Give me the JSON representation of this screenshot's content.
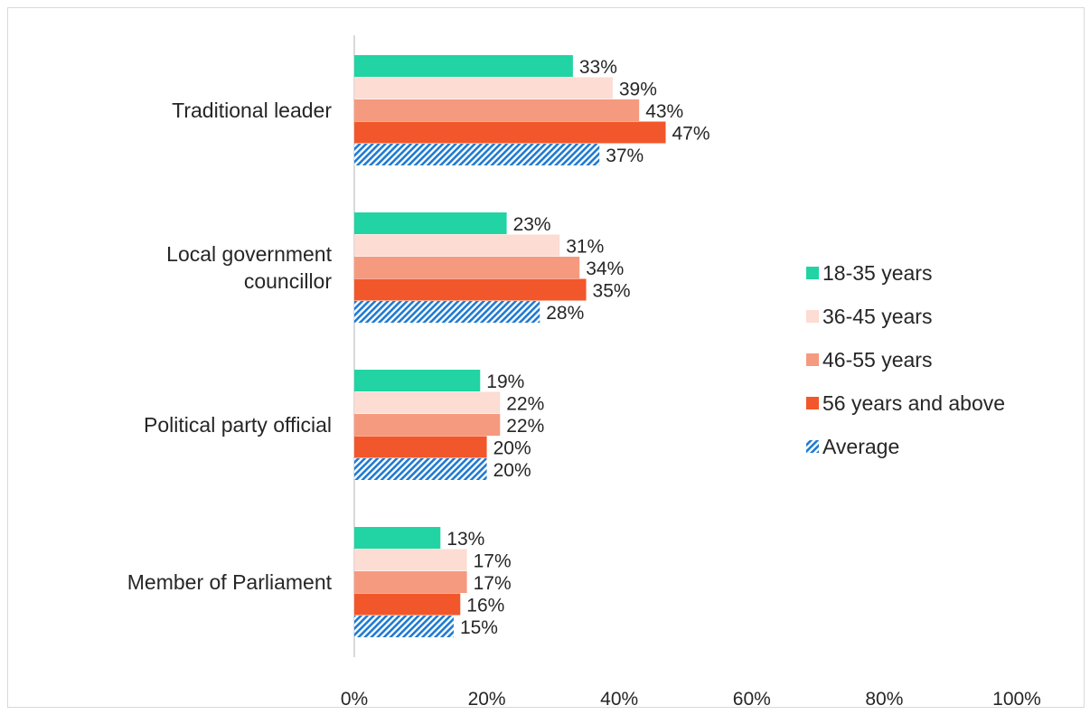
{
  "chart_data": {
    "type": "bar",
    "orientation": "horizontal",
    "categories": [
      "Traditional leader",
      "Local government councillor",
      "Political party official",
      "Member of Parliament"
    ],
    "category_lines": [
      [
        "Traditional leader"
      ],
      [
        "Local government",
        "councillor"
      ],
      [
        "Political party official"
      ],
      [
        "Member of Parliament"
      ]
    ],
    "series": [
      {
        "name": "18-35 years",
        "color": "#22D3A3",
        "pattern": "solid",
        "values": [
          33,
          23,
          19,
          13
        ]
      },
      {
        "name": "36-45 years",
        "color": "#FCDCD3",
        "pattern": "solid",
        "values": [
          39,
          31,
          22,
          17
        ]
      },
      {
        "name": "46-55 years",
        "color": "#F59A7E",
        "pattern": "solid",
        "values": [
          43,
          34,
          22,
          17
        ]
      },
      {
        "name": "56 years and above",
        "color": "#F2572B",
        "pattern": "solid",
        "values": [
          47,
          35,
          20,
          16
        ]
      },
      {
        "name": "Average",
        "color": "#1F7AD1",
        "pattern": "diagonal-hatch",
        "values": [
          37,
          28,
          20,
          15
        ]
      }
    ],
    "xlim": [
      0,
      100
    ],
    "xticks": [
      "0%",
      "20%",
      "40%",
      "60%",
      "80%",
      "100%"
    ],
    "value_suffix": "%",
    "grid": false,
    "legend_position": "right"
  }
}
